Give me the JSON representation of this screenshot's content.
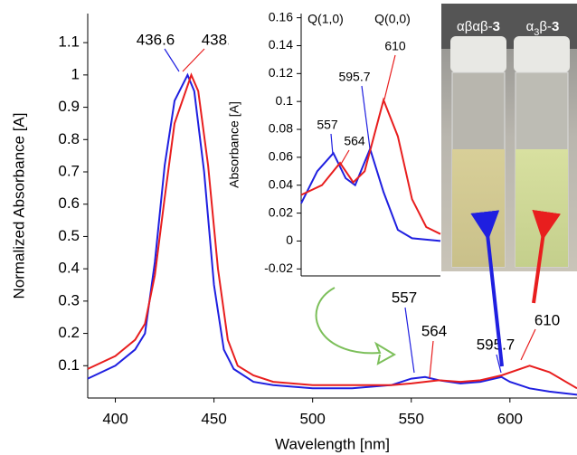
{
  "chart_data": [
    {
      "type": "line",
      "xlabel": "Wavelength [nm]",
      "ylabel": "Normalized Absorbance [A]",
      "xlim": [
        386,
        634
      ],
      "xticks": [
        400,
        450,
        500,
        550,
        600
      ],
      "ylim": [
        0,
        1.19
      ],
      "yticks": [
        0.1,
        0.2,
        0.3,
        0.4,
        0.5,
        0.6,
        0.7,
        0.8,
        0.9,
        1,
        1.1
      ],
      "series": [
        {
          "color": "#1f1fe0",
          "x": [
            386,
            400,
            410,
            415,
            420,
            425,
            430,
            436.6,
            440,
            445,
            450,
            455,
            460,
            470,
            480,
            500,
            520,
            540,
            550,
            557,
            564,
            575,
            585,
            595.7,
            600,
            610,
            620,
            634
          ],
          "values": [
            0.06,
            0.1,
            0.15,
            0.2,
            0.42,
            0.72,
            0.92,
            1.0,
            0.95,
            0.7,
            0.35,
            0.15,
            0.09,
            0.05,
            0.04,
            0.03,
            0.03,
            0.04,
            0.06,
            0.065,
            0.055,
            0.045,
            0.05,
            0.065,
            0.05,
            0.03,
            0.02,
            0.01
          ]
        },
        {
          "color": "#e81e1e",
          "x": [
            386,
            400,
            410,
            415,
            420,
            425,
            430,
            438.5,
            442,
            447,
            452,
            457,
            462,
            470,
            480,
            500,
            520,
            540,
            550,
            557,
            564,
            575,
            585,
            595.7,
            610,
            620,
            634
          ],
          "values": [
            0.09,
            0.13,
            0.18,
            0.23,
            0.38,
            0.62,
            0.85,
            1.0,
            0.95,
            0.72,
            0.4,
            0.18,
            0.1,
            0.07,
            0.05,
            0.04,
            0.04,
            0.04,
            0.045,
            0.05,
            0.055,
            0.05,
            0.055,
            0.07,
            0.1,
            0.08,
            0.03
          ]
        }
      ],
      "annotations": [
        "436.6",
        "438.5",
        "557",
        "564",
        "595.7",
        "610"
      ]
    },
    {
      "type": "line",
      "ylabel": "Absorbance [A]",
      "xlim": [
        523,
        670
      ],
      "ylim": [
        -0.025,
        0.163
      ],
      "yticks": [
        -0.02,
        0,
        0.02,
        0.04,
        0.06,
        0.08,
        0.1,
        0.12,
        0.14,
        0.16
      ],
      "series": [
        {
          "color": "#1f1fe0",
          "x": [
            523,
            540,
            557,
            570,
            580,
            595.7,
            610,
            625,
            640,
            670
          ],
          "values": [
            0.027,
            0.05,
            0.063,
            0.045,
            0.04,
            0.066,
            0.035,
            0.008,
            0.002,
            0
          ]
        },
        {
          "color": "#e81e1e",
          "x": [
            523,
            545,
            564,
            578,
            590,
            610,
            625,
            640,
            655,
            670
          ],
          "values": [
            0.033,
            0.04,
            0.056,
            0.042,
            0.05,
            0.101,
            0.075,
            0.03,
            0.01,
            0.005
          ]
        }
      ],
      "annotations": [
        "Q(1,0)",
        "Q(0,0)",
        "610",
        "595.7",
        "557",
        "564"
      ]
    }
  ],
  "photo": {
    "labels": [
      {
        "prefix": "αβαβ-",
        "bold": "3"
      },
      {
        "prefix": "α",
        "sub": "3",
        "mid": "β-",
        "bold": "3"
      }
    ]
  }
}
